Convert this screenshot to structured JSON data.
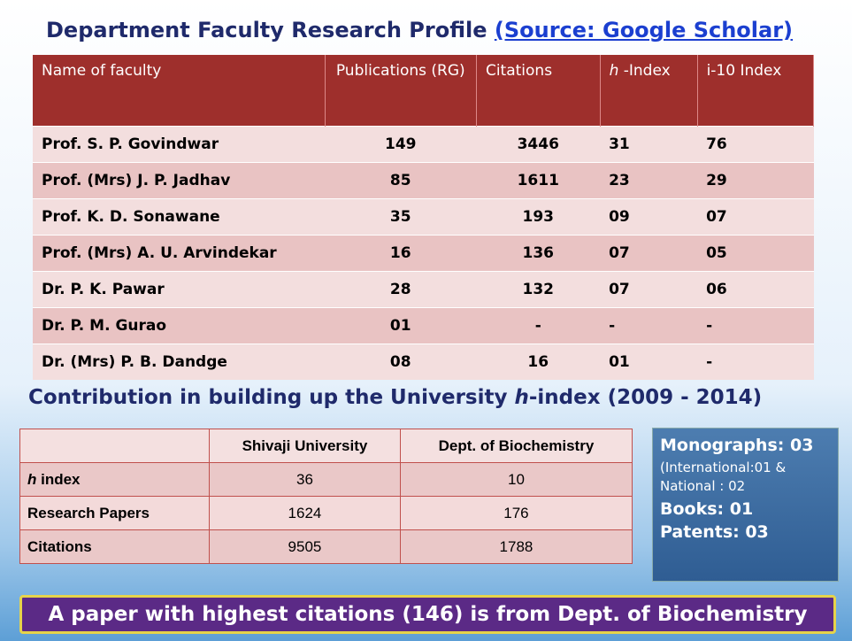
{
  "title": "Department Faculty Research Profile",
  "source": "(Source: Google Scholar)",
  "faculty_table": {
    "header": [
      "Name of faculty",
      "Publications (RG)",
      "Citations",
      [
        {
          "text": "h",
          "italic": true
        },
        {
          "text": " -Index"
        }
      ],
      "i-10 Index"
    ],
    "rows": [
      [
        "Prof. S. P. Govindwar",
        "149",
        "3446",
        "31",
        "76"
      ],
      [
        "Prof. (Mrs) J. P. Jadhav",
        "85",
        "1611",
        "23",
        "29"
      ],
      [
        "Prof. K. D. Sonawane",
        "35",
        "193",
        "09",
        "07"
      ],
      [
        "Prof. (Mrs) A. U. Arvindekar",
        "16",
        "136",
        "07",
        "05"
      ],
      [
        "Dr. P. K. Pawar",
        "28",
        "132",
        "07",
        "06"
      ],
      [
        "Dr. P. M. Gurao",
        "01",
        "-",
        "-",
        "-"
      ],
      [
        "Dr. (Mrs) P. B. Dandge",
        "08",
        "16",
        "01",
        "-"
      ]
    ]
  },
  "subtitle": [
    {
      "text": "Contribution in building up the University "
    },
    {
      "text": "h",
      "italic": true
    },
    {
      "text": "-index (2009 - 2014)"
    }
  ],
  "contribution_table": {
    "header": [
      "Shivaji University",
      "Dept. of Biochemistry"
    ],
    "rows": [
      [
        [
          {
            "text": "h",
            "italic": true
          },
          {
            "text": " index"
          }
        ],
        "36",
        "10"
      ],
      [
        "Research Papers",
        "1624",
        "176"
      ],
      [
        "Citations",
        "9505",
        "1788"
      ]
    ]
  },
  "side_box": [
    "Monographs: 03",
    "(International:01 & National : 02",
    "Books: 01",
    "Patents: 03"
  ],
  "footer": "A paper with highest citations (146) is from Dept. of Biochemistry"
}
